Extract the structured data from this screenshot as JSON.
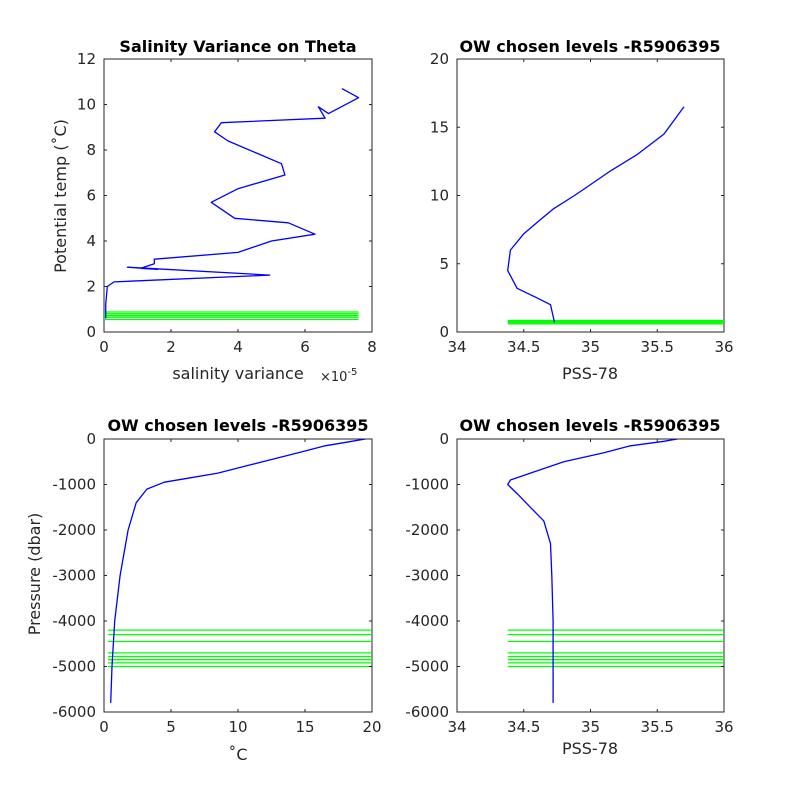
{
  "chart_data": [
    {
      "id": "salvar",
      "type": "line",
      "title": "Salinity Variance on Theta",
      "xlabel": "salinity variance",
      "ylabel": "Potential temp (˚C)",
      "x_multiplier_label": "×10",
      "x_multiplier_exponent": "-5",
      "xlim": [
        0,
        8
      ],
      "ylim": [
        0,
        12
      ],
      "xticks": [
        0,
        2,
        4,
        6,
        8
      ],
      "yticks": [
        0,
        2,
        4,
        6,
        8,
        10,
        12
      ],
      "xtick_labels": [
        "0",
        "2",
        "4",
        "6",
        "8"
      ],
      "ytick_labels": [
        "0",
        "2",
        "4",
        "6",
        "8",
        "10",
        "12"
      ],
      "series": [
        {
          "color": "#0000ff",
          "x": [
            7.1,
            7.6,
            6.7,
            6.4,
            6.6,
            3.5,
            3.3,
            3.7,
            5.3,
            5.4,
            4.0,
            3.2,
            3.9,
            5.5,
            6.3,
            5.0,
            4.0,
            1.5,
            1.5,
            1.1,
            1.6,
            0.7,
            4.95,
            0.3,
            0.1,
            0.05,
            0.05
          ],
          "y": [
            10.7,
            10.3,
            9.6,
            9.9,
            9.4,
            9.2,
            8.8,
            8.4,
            7.4,
            6.9,
            6.3,
            5.7,
            5.0,
            4.8,
            4.3,
            4.0,
            3.5,
            3.2,
            3.0,
            2.8,
            2.75,
            2.85,
            2.5,
            2.2,
            2.0,
            1.2,
            0.6
          ]
        }
      ],
      "hlines": {
        "color": "#00ff00",
        "y": [
          0.55,
          0.65,
          0.72,
          0.8,
          0.88
        ],
        "x_range": [
          0,
          7.6
        ]
      }
    },
    {
      "id": "theta_s",
      "type": "line",
      "title": "OW chosen levels -R5906395",
      "xlabel": "PSS-78",
      "ylabel": "",
      "xlim": [
        34,
        36
      ],
      "ylim": [
        0,
        20
      ],
      "xticks": [
        34,
        34.5,
        35,
        35.5,
        36
      ],
      "yticks": [
        0,
        5,
        10,
        15,
        20
      ],
      "xtick_labels": [
        "34",
        "34.5",
        "35",
        "35.5",
        "36"
      ],
      "ytick_labels": [
        "0",
        "5",
        "10",
        "15",
        "20"
      ],
      "series": [
        {
          "color": "#0000ff",
          "x": [
            34.73,
            34.7,
            34.6,
            34.45,
            34.38,
            34.4,
            34.5,
            34.62,
            34.72,
            34.88,
            35.0,
            35.15,
            35.35,
            35.55,
            35.7
          ],
          "y": [
            0.7,
            2.0,
            2.5,
            3.2,
            4.5,
            6.0,
            7.2,
            8.2,
            9.0,
            10.0,
            10.8,
            11.8,
            13.0,
            14.5,
            16.5
          ]
        }
      ],
      "hlines": {
        "color": "#00ff00",
        "y": [
          0.6,
          0.68,
          0.76,
          0.84
        ],
        "x_range": [
          34.38,
          36
        ]
      }
    },
    {
      "id": "p_theta",
      "type": "line",
      "title": "OW chosen levels -R5906395",
      "xlabel": "˚C",
      "ylabel": "Pressure (dbar)",
      "xlim": [
        0,
        20
      ],
      "ylim": [
        -6000,
        0
      ],
      "xticks": [
        0,
        5,
        10,
        15,
        20
      ],
      "yticks": [
        -6000,
        -5000,
        -4000,
        -3000,
        -2000,
        -1000,
        0
      ],
      "xtick_labels": [
        "0",
        "5",
        "10",
        "15",
        "20"
      ],
      "ytick_labels": [
        "-6000",
        "-5000",
        "-4000",
        "-3000",
        "-2000",
        "-1000",
        "0"
      ],
      "series": [
        {
          "color": "#0000ff",
          "x": [
            0.5,
            0.6,
            0.8,
            1.2,
            1.8,
            2.4,
            3.2,
            4.5,
            6.5,
            8.5,
            10.5,
            12.5,
            14.5,
            16.5,
            18.5,
            19.5
          ],
          "y": [
            -5800,
            -5000,
            -4000,
            -3000,
            -2000,
            -1400,
            -1100,
            -950,
            -850,
            -750,
            -600,
            -450,
            -300,
            -150,
            -50,
            0
          ]
        }
      ],
      "hlines": {
        "color": "#00ff00",
        "y": [
          -4200,
          -4300,
          -4450,
          -4700,
          -4780,
          -4850,
          -4920,
          -5000
        ],
        "x_range": [
          0.3,
          20
        ]
      }
    },
    {
      "id": "p_sal",
      "type": "line",
      "title": "OW chosen levels -R5906395",
      "xlabel": "PSS-78",
      "ylabel": "",
      "xlim": [
        34,
        36
      ],
      "ylim": [
        -6000,
        0
      ],
      "xticks": [
        34,
        34.5,
        35,
        35.5,
        36
      ],
      "yticks": [
        -6000,
        -5000,
        -4000,
        -3000,
        -2000,
        -1000,
        0
      ],
      "xtick_labels": [
        "34",
        "34.5",
        "35",
        "35.5",
        "36"
      ],
      "ytick_labels": [
        "-6000",
        "-5000",
        "-4000",
        "-3000",
        "-2000",
        "-1000",
        "0"
      ],
      "series": [
        {
          "color": "#0000ff",
          "x": [
            34.72,
            34.72,
            34.71,
            34.7,
            34.65,
            34.55,
            34.45,
            34.38,
            34.4,
            34.55,
            34.8,
            35.1,
            35.3,
            35.55,
            35.65
          ],
          "y": [
            -5800,
            -4000,
            -3000,
            -2300,
            -1800,
            -1500,
            -1200,
            -1000,
            -900,
            -750,
            -500,
            -300,
            -150,
            -50,
            0
          ]
        }
      ],
      "hlines": {
        "color": "#00ff00",
        "y": [
          -4200,
          -4300,
          -4450,
          -4700,
          -4780,
          -4850,
          -4920,
          -5000
        ],
        "x_range": [
          34.38,
          36
        ]
      }
    }
  ]
}
